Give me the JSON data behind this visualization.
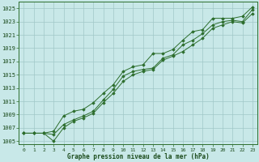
{
  "title": "Graphe pression niveau de la mer (hPa)",
  "background_color": "#c8e8e8",
  "grid_color": "#a0c8c8",
  "line_color": "#2d6e2d",
  "marker_color": "#2d6e2d",
  "xlim": [
    -0.5,
    23.5
  ],
  "ylim": [
    1004.5,
    1026.0
  ],
  "yticks": [
    1005,
    1007,
    1009,
    1011,
    1013,
    1015,
    1017,
    1019,
    1021,
    1023,
    1025
  ],
  "xticks": [
    0,
    1,
    2,
    3,
    4,
    5,
    6,
    7,
    8,
    9,
    10,
    11,
    12,
    13,
    14,
    15,
    16,
    17,
    18,
    19,
    20,
    21,
    22,
    23
  ],
  "series": [
    [
      1006.2,
      1006.2,
      1006.2,
      1006.0,
      1007.5,
      1008.2,
      1008.8,
      1009.5,
      1011.2,
      1012.8,
      1014.8,
      1015.5,
      1015.8,
      1016.0,
      1017.5,
      1018.0,
      1019.5,
      1020.2,
      1021.2,
      1022.5,
      1023.0,
      1023.2,
      1023.0,
      1024.8
    ],
    [
      1006.2,
      1006.2,
      1006.2,
      1005.0,
      1007.0,
      1008.0,
      1008.5,
      1009.2,
      1010.8,
      1012.2,
      1014.0,
      1015.0,
      1015.5,
      1015.8,
      1017.2,
      1017.8,
      1018.5,
      1019.5,
      1020.5,
      1022.0,
      1022.5,
      1023.0,
      1022.8,
      1024.2
    ],
    [
      1006.2,
      1006.2,
      1006.2,
      1006.5,
      1008.8,
      1009.5,
      1009.8,
      1010.8,
      1012.2,
      1013.5,
      1015.5,
      1016.2,
      1016.5,
      1018.2,
      1018.2,
      1018.8,
      1020.2,
      1021.5,
      1021.8,
      1023.5,
      1023.5,
      1023.5,
      1023.8,
      1025.2
    ]
  ]
}
